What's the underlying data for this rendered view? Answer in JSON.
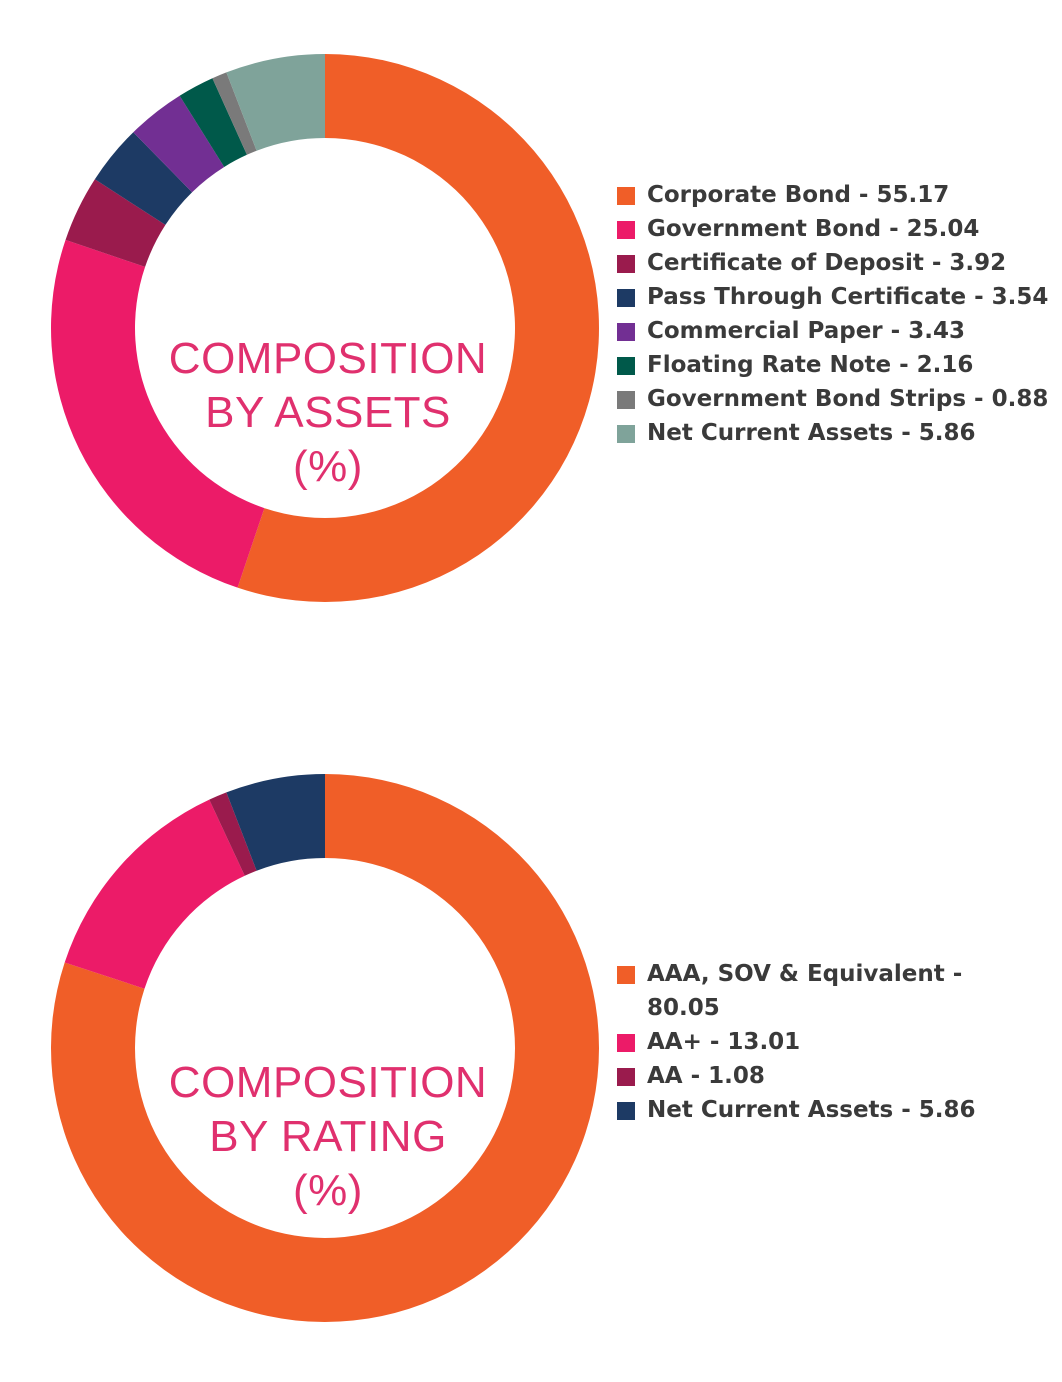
{
  "chart_data": [
    {
      "type": "pie",
      "donut": true,
      "title_lines": [
        "COMPOSITION",
        "BY ASSETS",
        "(%)"
      ],
      "legend_placement": "right",
      "series": [
        {
          "label": "Corporate Bond - 55.17",
          "name": "Corporate Bond",
          "value": 55.17,
          "color": "#f05e28"
        },
        {
          "label": "Government Bond - 25.04",
          "name": "Government Bond",
          "value": 25.04,
          "color": "#ec1b68"
        },
        {
          "label": "Certificate of Deposit - 3.92",
          "name": "Certificate of Deposit",
          "value": 3.92,
          "color": "#9a1b4d"
        },
        {
          "label": "Pass Through Certificate - 3.54",
          "name": "Pass Through Certificate",
          "value": 3.54,
          "color": "#1d3a64"
        },
        {
          "label": "Commercial Paper - 3.43",
          "name": "Commercial Paper",
          "value": 3.43,
          "color": "#722f93"
        },
        {
          "label": "Floating Rate Note - 2.16",
          "name": "Floating Rate Note",
          "value": 2.16,
          "color": "#00594a"
        },
        {
          "label": "Government Bond Strips - 0.88",
          "name": "Government Bond Strips",
          "value": 0.88,
          "color": "#7a7a7a"
        },
        {
          "label": "Net Current Assets - 5.86",
          "name": "Net Current Assets",
          "value": 5.86,
          "color": "#7fa39a"
        }
      ]
    },
    {
      "type": "pie",
      "donut": true,
      "title_lines": [
        "COMPOSITION",
        "BY RATING",
        "(%)"
      ],
      "legend_placement": "right",
      "series": [
        {
          "label": "AAA, SOV & Equivalent - 80.05",
          "name": "AAA, SOV & Equivalent",
          "value": 80.05,
          "color": "#f05e28"
        },
        {
          "label": "AA+ - 13.01",
          "name": "AA+",
          "value": 13.01,
          "color": "#ec1b68"
        },
        {
          "label": "AA - 1.08",
          "name": "AA",
          "value": 1.08,
          "color": "#9a1b4d"
        },
        {
          "label": "Net Current Assets - 5.86",
          "name": "Net Current Assets",
          "value": 5.86,
          "color": "#1d3a64"
        }
      ]
    }
  ]
}
